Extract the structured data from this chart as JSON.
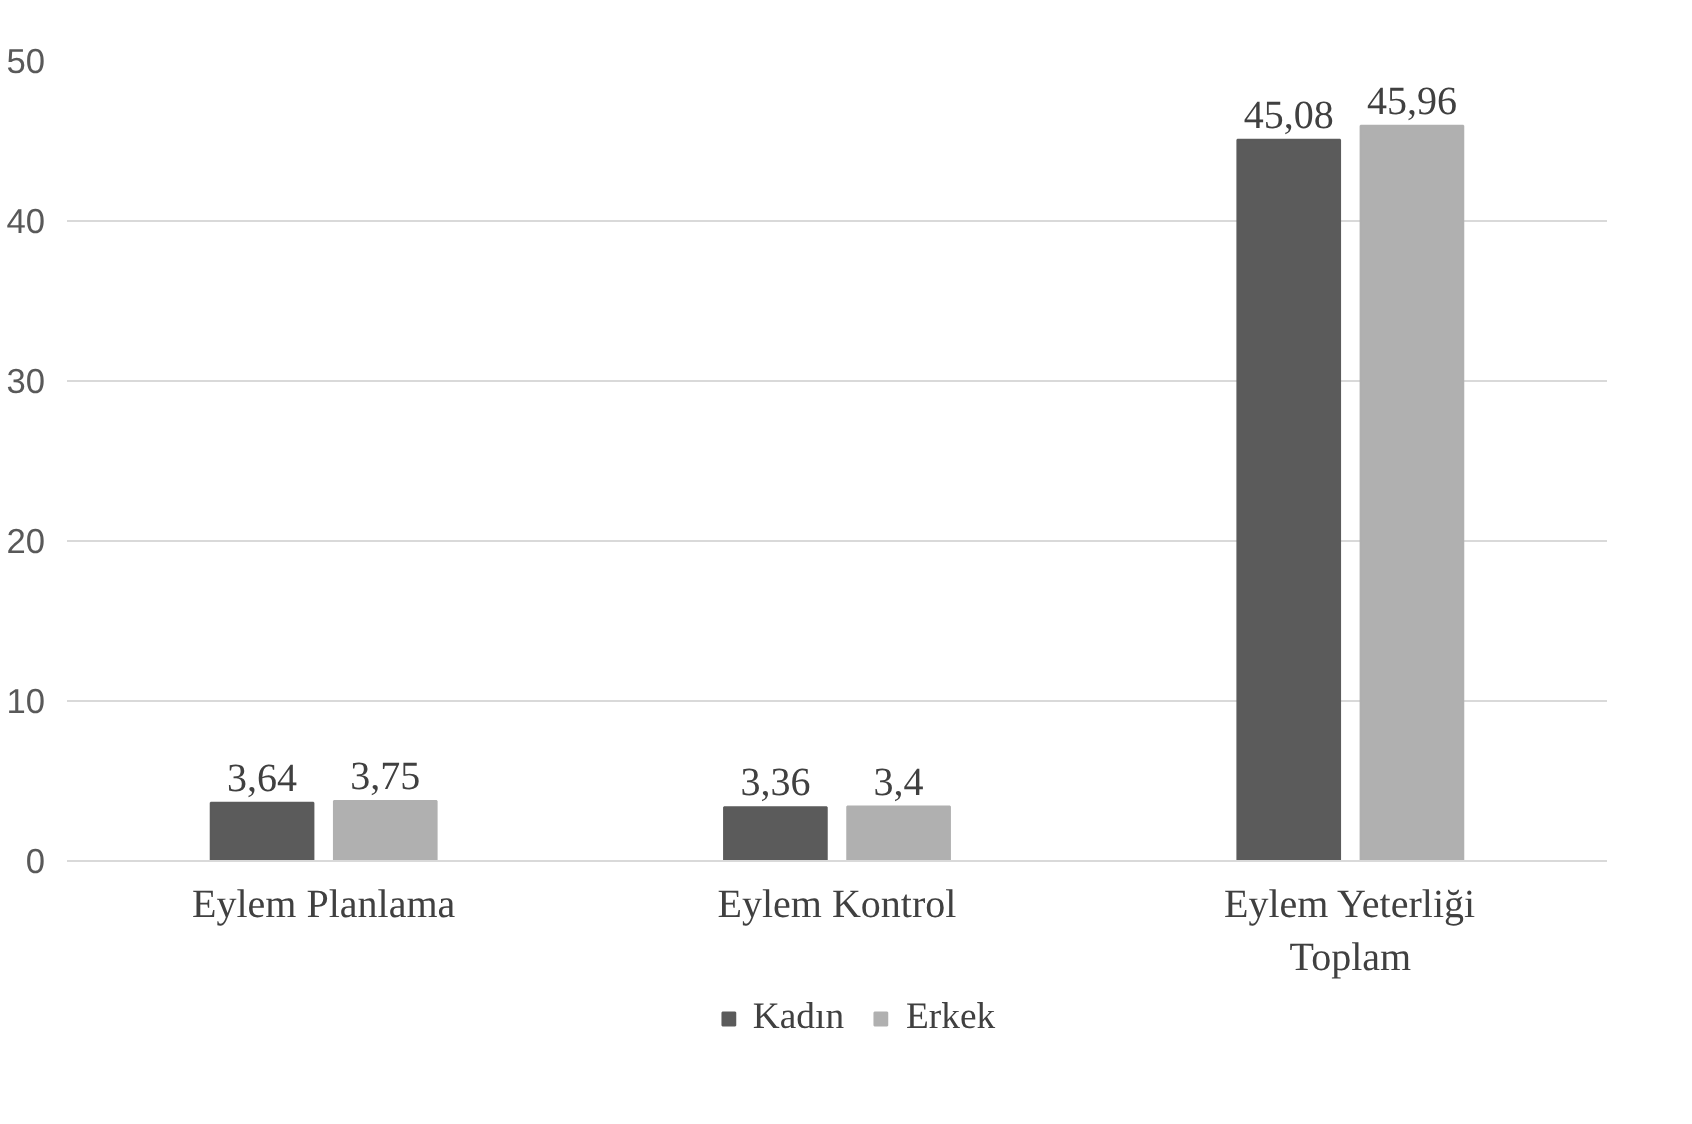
{
  "chart_data": {
    "type": "bar",
    "categories": [
      "Eylem Planlama",
      "Eylem Kontrol",
      "Eylem Yeterliği Toplam"
    ],
    "series": [
      {
        "name": "Kadın",
        "color": "#5b5b5b",
        "values": [
          3.64,
          3.36,
          45.08
        ],
        "value_labels": [
          "3,64",
          "3,36",
          "45,08"
        ]
      },
      {
        "name": "Erkek",
        "color": "#b0b0b0",
        "values": [
          3.75,
          3.4,
          45.96
        ],
        "value_labels": [
          "3,75",
          "3,4",
          "45,96"
        ]
      }
    ],
    "ylim": [
      0,
      50
    ],
    "yticks": [
      0,
      10,
      20,
      30,
      40,
      50
    ],
    "grid": "y",
    "legend": "bottom"
  }
}
